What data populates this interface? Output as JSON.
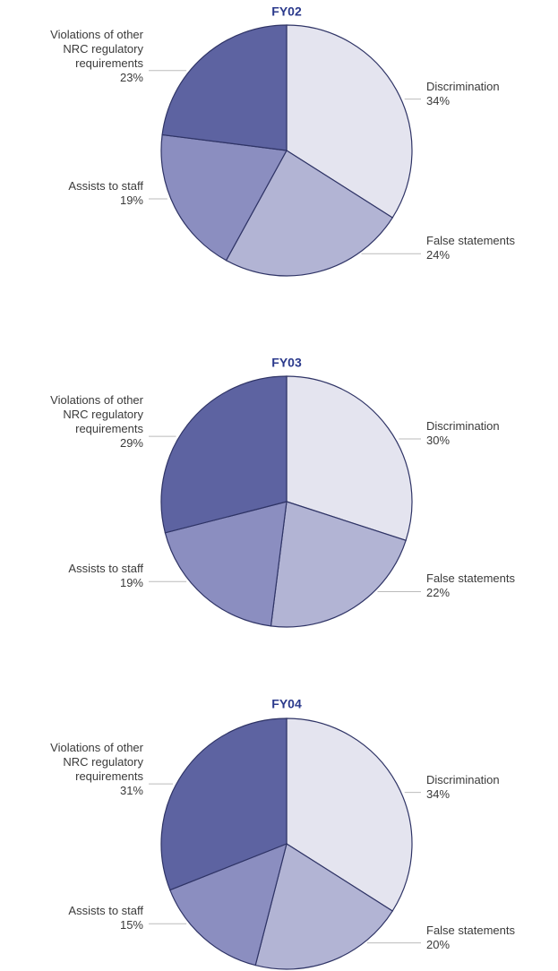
{
  "chart_data": [
    {
      "type": "pie",
      "title": "FY02",
      "categories": [
        "Discrimination",
        "False statements",
        "Assists to staff",
        "Violations of other NRC regulatory requirements"
      ],
      "values": [
        34,
        24,
        19,
        23
      ],
      "value_labels": [
        "34%",
        "24%",
        "19%",
        "23%"
      ],
      "colors": [
        "#e4e4ef",
        "#b2b4d4",
        "#8b8ec0",
        "#5d63a1"
      ]
    },
    {
      "type": "pie",
      "title": "FY03",
      "categories": [
        "Discrimination",
        "False statements",
        "Assists to staff",
        "Violations of other NRC regulatory requirements"
      ],
      "values": [
        30,
        22,
        19,
        29
      ],
      "value_labels": [
        "30%",
        "22%",
        "19%",
        "29%"
      ],
      "colors": [
        "#e4e4ef",
        "#b2b4d4",
        "#8b8ec0",
        "#5d63a1"
      ]
    },
    {
      "type": "pie",
      "title": "FY04",
      "categories": [
        "Discrimination",
        "False statements",
        "Assists to staff",
        "Violations of other NRC regulatory requirements"
      ],
      "values": [
        34,
        20,
        15,
        31
      ],
      "value_labels": [
        "34%",
        "20%",
        "15%",
        "31%"
      ],
      "colors": [
        "#e4e4ef",
        "#b2b4d4",
        "#8b8ec0",
        "#5d63a1"
      ]
    }
  ]
}
